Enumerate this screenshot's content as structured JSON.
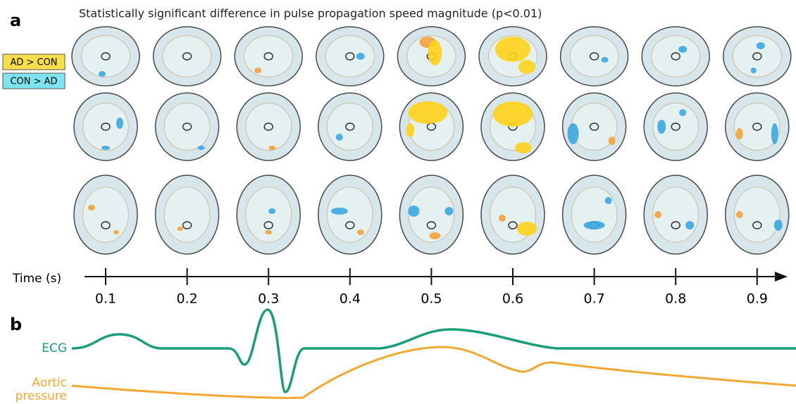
{
  "panel_a": {
    "label": "a",
    "title": "Statistically significant difference in pulse propagation speed magnitude (p<0.01)",
    "legend": [
      "AD > CON",
      "CON > AD"
    ],
    "axis_label": "Time (s)",
    "ticks": [
      0.1,
      0.2,
      0.3,
      0.4,
      0.5,
      0.6,
      0.7,
      0.8,
      0.9
    ]
  },
  "panel_b": {
    "label": "b",
    "ecg_label": "ECG",
    "aortic_label": [
      "Aortic",
      "pressure"
    ]
  }
}
